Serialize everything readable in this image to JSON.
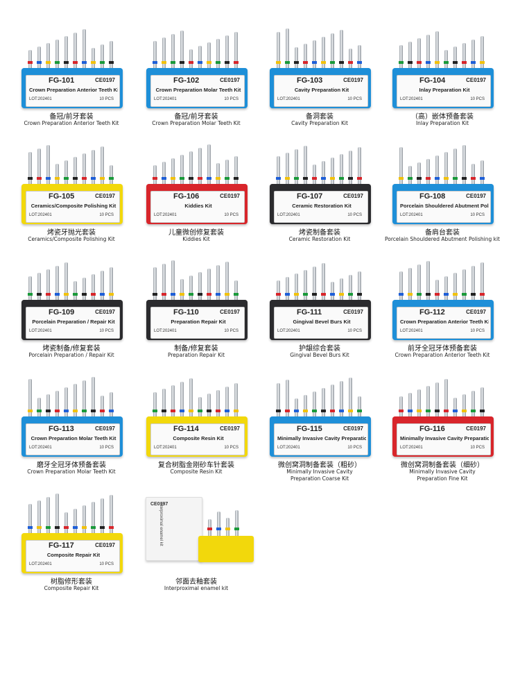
{
  "kits": [
    {
      "code": "FG-101",
      "ce": "CE0197",
      "name": "Crown Preparation Anterior Teeth Kit",
      "lot": "LOT:202401",
      "pcs": "10 PCS",
      "cn": "备冠/前牙套装",
      "en": "Crown Preparation Anterior Teeth Kit",
      "color": "#1e8fd8"
    },
    {
      "code": "FG-102",
      "ce": "CE0197",
      "name": "Crown Preparation Molar Teeth Kit",
      "lot": "LOT:202401",
      "pcs": "10 PCS",
      "cn": "备冠/前牙套装",
      "en": "Crown Preparation Molar Teeth Kit",
      "color": "#1e8fd8"
    },
    {
      "code": "FG-103",
      "ce": "CE0197",
      "name": "Cavity Preparation Kit",
      "lot": "LOT:202401",
      "pcs": "10 PCS",
      "cn": "备洞套装",
      "en": "Cavity Preparation Kit",
      "color": "#1e8fd8"
    },
    {
      "code": "FG-104",
      "ce": "CE0197",
      "name": "Inlay Preparation Kit",
      "lot": "LOT:202401",
      "pcs": "10 PCS",
      "cn": "（高）嵌体预备套装",
      "en": "Inlay Preparation Kit",
      "color": "#1e8fd8"
    },
    {
      "code": "FG-105",
      "ce": "CE0197",
      "name": "Ceramics/Composite Polishing Kit",
      "lot": "LOT:202401",
      "pcs": "10 PCS",
      "cn": "烤瓷牙抛光套装",
      "en": "Ceramics/Composite Polishing Kit",
      "color": "#f2d80c"
    },
    {
      "code": "FG-106",
      "ce": "CE0197",
      "name": "Kiddies Kit",
      "lot": "LOT:202401",
      "pcs": "10 PCS",
      "cn": "儿童微创修复套装",
      "en": "Kiddies Kit",
      "color": "#d8262b"
    },
    {
      "code": "FG-107",
      "ce": "CE0197",
      "name": "Ceramic Restoration Kit",
      "lot": "LOT:202401",
      "pcs": "10 PCS",
      "cn": "烤瓷制备套装",
      "en": "Ceramic Restoration Kit",
      "color": "#2b2b2e"
    },
    {
      "code": "FG-108",
      "ce": "CE0197",
      "name": "Porcelain Shouldered Abutment Polishing kit",
      "lot": "LOT:202401",
      "pcs": "10 PCS",
      "cn": "备肩台套装",
      "en": "Porcelain Shouldered Abutment Polishing kit",
      "color": "#1e8fd8"
    },
    {
      "code": "FG-109",
      "ce": "CE0197",
      "name": "Porcelain Preparation / Repair Kit",
      "lot": "LOT:202401",
      "pcs": "10 PCS",
      "cn": "烤瓷制备/修复套装",
      "en": "Porcelain Preparation / Repair Kit",
      "color": "#2b2b2e"
    },
    {
      "code": "FG-110",
      "ce": "CE0197",
      "name": "Preparation Repair Kit",
      "lot": "LOT:202401",
      "pcs": "10 PCS",
      "cn": "制备/修复套装",
      "en": "Preparation Repair Kit",
      "color": "#2b2b2e"
    },
    {
      "code": "FG-111",
      "ce": "CE0197",
      "name": "Gingival Bevel Burs Kit",
      "lot": "LOT:202401",
      "pcs": "10 PCS",
      "cn": "护龈综合套装",
      "en": "Gingival Bevel Burs Kit",
      "color": "#2b2b2e"
    },
    {
      "code": "FG-112",
      "ce": "CE0197",
      "name": "Crown Preparation Anterior Teeth Kit",
      "lot": "LOT:202401",
      "pcs": "10 PCS",
      "cn": "前牙全冠牙体预备套装",
      "en": "Crown Preparation Anterior Teeth Kit",
      "color": "#1e8fd8"
    },
    {
      "code": "FG-113",
      "ce": "CE0197",
      "name": "Crown Preparation Molar Teeth Kit",
      "lot": "LOT:202401",
      "pcs": "10 PCS",
      "cn": "磨牙全冠牙体预备套装",
      "en": "Crown Preparation Molar Teeth Kit",
      "color": "#1e8fd8"
    },
    {
      "code": "FG-114",
      "ce": "CE0197",
      "name": "Composite Resin Kit",
      "lot": "LOT:202401",
      "pcs": "10 PCS",
      "cn": "复合树脂金刚砂车针套装",
      "en": "Composite Resin Kit",
      "color": "#f2d80c"
    },
    {
      "code": "FG-115",
      "ce": "CE0197",
      "name": "Minimally Invasive Cavity Preparation Coarse Kit",
      "lot": "LOT:202401",
      "pcs": "10 PCS",
      "cn": "微创窝洞制备套装（粗砂）",
      "en": "Minimally Invasive Cavity\nPreparation Coarse Kit",
      "color": "#1e8fd8"
    },
    {
      "code": "FG-116",
      "ce": "CE0197",
      "name": "Minimally Invasive Cavity Preparation Fine Kit",
      "lot": "LOT:202401",
      "pcs": "10 PCS",
      "cn": "微创窝洞制备套装（细砂）",
      "en": "Minimally Invasive Cavity\nPreparation Fine Kit",
      "color": "#d8262b"
    },
    {
      "code": "FG-117",
      "ce": "CE0197",
      "name": "Composite Repair Kit",
      "lot": "LOT:202401",
      "pcs": "10 PCS",
      "cn": "树脂修形套装",
      "en": "Composite Repair Kit",
      "color": "#f2d80c"
    }
  ],
  "special": {
    "card_label": "Interproximal enamel kit",
    "card_ce": "CE0197",
    "cn": "邻面去釉套装",
    "en": "Interproximal enamel kit",
    "color": "#f2d80c"
  },
  "band_colors": [
    "#d8262b",
    "#1e5fd8",
    "#f2c20c",
    "#1a9a3a",
    "#222222"
  ]
}
